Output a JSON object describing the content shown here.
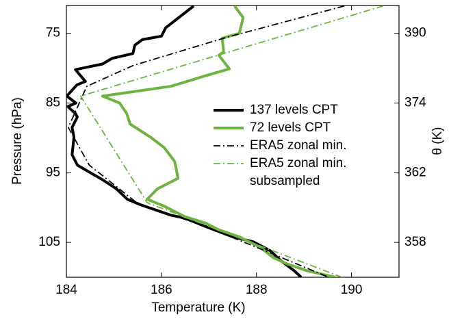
{
  "chart_data": {
    "type": "line",
    "xlabel": "Temperature (K)",
    "ylabel": "Pressure (hPa)",
    "y2label": "θ (K)",
    "xlim": [
      184,
      191
    ],
    "xticks": [
      184,
      186,
      188,
      190
    ],
    "ylim": [
      71,
      110
    ],
    "yticks": [
      75,
      85,
      95,
      105
    ],
    "y_reversed": true,
    "y2ticks": [
      390,
      374,
      362,
      358
    ],
    "y2tick_pressures": [
      75,
      85,
      95,
      105
    ],
    "series": [
      {
        "name": "137 levels CPT",
        "color": "#000000",
        "dashed": false,
        "x": [
          186.68,
          186.09,
          186.0,
          185.6,
          185.44,
          185.4,
          184.96,
          184.76,
          184.19,
          184.4,
          184.22,
          184.01,
          184.2,
          184.03,
          184.19,
          184.23,
          184.12,
          184.16,
          184.12,
          184.23,
          184.48,
          184.76,
          185.05,
          185.28,
          185.56,
          186.2,
          186.49,
          186.92,
          187.5,
          187.93,
          188.29,
          188.51,
          188.8,
          188.94
        ],
        "values": [
          71.07,
          74.2,
          75.4,
          75.9,
          76.7,
          77.9,
          78.6,
          79.4,
          80.2,
          81.9,
          82.4,
          84.0,
          85.0,
          85.5,
          86.5,
          87.0,
          88.5,
          89.9,
          92.4,
          93.9,
          94.9,
          96.0,
          97.3,
          98.8,
          99.6,
          101.1,
          101.5,
          102.7,
          104.2,
          104.9,
          106.2,
          107.6,
          109.1,
          110
        ]
      },
      {
        "name": "72 levels CPT",
        "color": "#6db33f",
        "dashed": false,
        "x": [
          187.54,
          187.72,
          187.64,
          187.28,
          187.31,
          187.21,
          187.43,
          186.92,
          186.2,
          184.76,
          185.12,
          185.27,
          185.34,
          185.77,
          186.06,
          186.28,
          186.35,
          185.92,
          185.7,
          186.06,
          186.49,
          186.92,
          187.21,
          187.64,
          188.08,
          188.36,
          188.65,
          189.08,
          189.66
        ],
        "values": [
          71.07,
          72.74,
          75,
          75.69,
          77.65,
          78.15,
          80.1,
          81.1,
          82.6,
          84.0,
          85.0,
          86.5,
          88.0,
          89.9,
          91.4,
          93.4,
          95.8,
          97.3,
          98.8,
          99.8,
          101.3,
          102.2,
          103.2,
          104.2,
          105.7,
          107.2,
          108.1,
          109.1,
          110
        ]
      },
      {
        "name": "ERA5 zonal min.",
        "color": "#000000",
        "dashed": true,
        "x": [
          189.85,
          187.36,
          185.41,
          184.43,
          184.04,
          184.48,
          185.48,
          186.92,
          188.36,
          189.52
        ],
        "values": [
          71.07,
          75.6,
          79.6,
          82.6,
          88.5,
          93.9,
          99.3,
          102.7,
          106.7,
          110
        ]
      },
      {
        "name": "ERA5 zonal min. subsampled",
        "color": "#6db33f",
        "dashed": true,
        "x": [
          190.67,
          184.3,
          185.7,
          189.8
        ],
        "values": [
          71.07,
          84.0,
          99.3,
          110
        ]
      }
    ]
  }
}
